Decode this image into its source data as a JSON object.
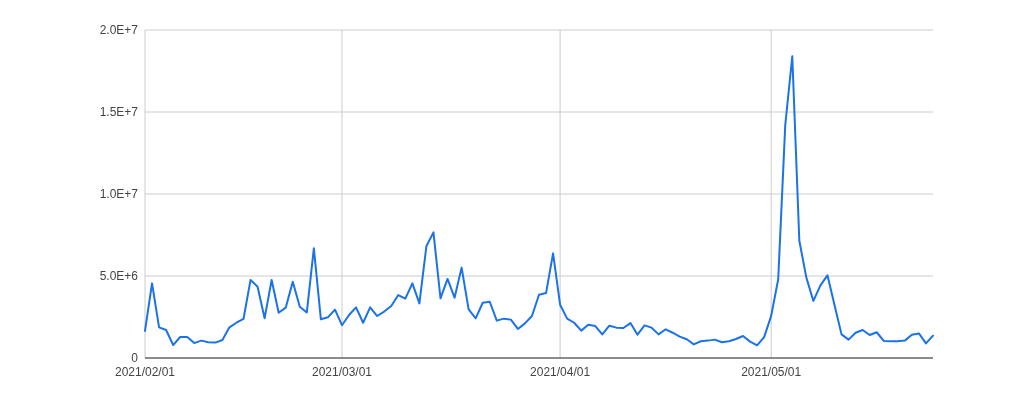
{
  "chart_data": {
    "type": "line",
    "x": [
      "2021-02-01",
      "2021-02-02",
      "2021-02-03",
      "2021-02-04",
      "2021-02-05",
      "2021-02-06",
      "2021-02-07",
      "2021-02-08",
      "2021-02-09",
      "2021-02-10",
      "2021-02-11",
      "2021-02-12",
      "2021-02-13",
      "2021-02-14",
      "2021-02-15",
      "2021-02-16",
      "2021-02-17",
      "2021-02-18",
      "2021-02-19",
      "2021-02-20",
      "2021-02-21",
      "2021-02-22",
      "2021-02-23",
      "2021-02-24",
      "2021-02-25",
      "2021-02-26",
      "2021-02-27",
      "2021-02-28",
      "2021-03-01",
      "2021-03-02",
      "2021-03-03",
      "2021-03-04",
      "2021-03-05",
      "2021-03-06",
      "2021-03-07",
      "2021-03-08",
      "2021-03-09",
      "2021-03-10",
      "2021-03-11",
      "2021-03-12",
      "2021-03-13",
      "2021-03-14",
      "2021-03-15",
      "2021-03-16",
      "2021-03-17",
      "2021-03-18",
      "2021-03-19",
      "2021-03-20",
      "2021-03-21",
      "2021-03-22",
      "2021-03-23",
      "2021-03-24",
      "2021-03-25",
      "2021-03-26",
      "2021-03-27",
      "2021-03-28",
      "2021-03-29",
      "2021-03-30",
      "2021-03-31",
      "2021-04-01",
      "2021-04-02",
      "2021-04-03",
      "2021-04-04",
      "2021-04-05",
      "2021-04-06",
      "2021-04-07",
      "2021-04-08",
      "2021-04-09",
      "2021-04-10",
      "2021-04-11",
      "2021-04-12",
      "2021-04-13",
      "2021-04-14",
      "2021-04-15",
      "2021-04-16",
      "2021-04-17",
      "2021-04-18",
      "2021-04-19",
      "2021-04-20",
      "2021-04-21",
      "2021-04-22",
      "2021-04-23",
      "2021-04-24",
      "2021-04-25",
      "2021-04-26",
      "2021-04-27",
      "2021-04-28",
      "2021-04-29",
      "2021-04-30",
      "2021-05-01",
      "2021-05-02",
      "2021-05-03",
      "2021-05-04",
      "2021-05-05",
      "2021-05-06",
      "2021-05-07",
      "2021-05-08",
      "2021-05-09",
      "2021-05-10",
      "2021-05-11",
      "2021-05-12",
      "2021-05-13",
      "2021-05-14",
      "2021-05-15",
      "2021-05-16",
      "2021-05-17",
      "2021-05-18",
      "2021-05-19",
      "2021-05-20",
      "2021-05-21",
      "2021-05-22",
      "2021-05-23",
      "2021-05-24"
    ],
    "series": [
      {
        "color": "#1a73e8",
        "values": [
          1650000,
          4550000,
          1870000,
          1710000,
          790000,
          1280000,
          1280000,
          910000,
          1060000,
          960000,
          940000,
          1100000,
          1870000,
          2150000,
          2380000,
          4760000,
          4350000,
          2420000,
          4760000,
          2760000,
          3070000,
          4650000,
          3130000,
          2780000,
          6690000,
          2360000,
          2480000,
          2950000,
          2000000,
          2620000,
          3090000,
          2150000,
          3090000,
          2560000,
          2830000,
          3170000,
          3840000,
          3620000,
          4550000,
          3330000,
          6830000,
          7660000,
          3640000,
          4820000,
          3680000,
          5510000,
          2970000,
          2420000,
          3370000,
          3430000,
          2280000,
          2400000,
          2340000,
          1770000,
          2110000,
          2560000,
          3860000,
          3960000,
          6380000,
          3250000,
          2400000,
          2150000,
          1670000,
          2030000,
          1950000,
          1440000,
          1970000,
          1850000,
          1830000,
          2130000,
          1420000,
          1990000,
          1850000,
          1440000,
          1750000,
          1540000,
          1300000,
          1140000,
          830000,
          1020000,
          1060000,
          1120000,
          960000,
          1020000,
          1160000,
          1340000,
          1000000,
          770000,
          1270000,
          2570000,
          4800000,
          14200000,
          18400000,
          7150000,
          4900000,
          3480000,
          4430000,
          5040000,
          3230000,
          1440000,
          1120000,
          1540000,
          1710000,
          1400000,
          1570000,
          1040000,
          1020000,
          1020000,
          1060000,
          1420000,
          1500000,
          890000,
          1360000
        ]
      }
    ],
    "xlim": [
      "2021-02-01",
      "2021-05-24"
    ],
    "xticks": [
      {
        "value": "2021-02-01",
        "label": "2021/02/01"
      },
      {
        "value": "2021-03-01",
        "label": "2021/03/01"
      },
      {
        "value": "2021-04-01",
        "label": "2021/04/01"
      },
      {
        "value": "2021-05-01",
        "label": "2021/05/01"
      }
    ],
    "ylim": [
      0,
      20000000
    ],
    "yticks": [
      0,
      {
        "value": 5000000,
        "label": "5.0E+6"
      },
      {
        "value": 10000000,
        "label": "1.0E+7"
      },
      {
        "value": 15000000,
        "label": "1.5E+7"
      },
      {
        "value": 20000000,
        "label": "2.0E+7"
      }
    ],
    "grid": true
  }
}
